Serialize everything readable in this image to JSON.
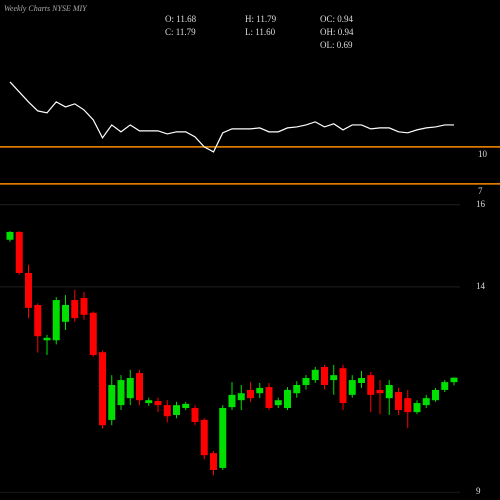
{
  "chart_data": [
    {
      "type": "line",
      "title": "Weekly Charts NYSE MIY",
      "summary": [
        "O: 11.68",
        "C: 11.79",
        "H: 11.79",
        "L: 11.60",
        "OC: 0.94",
        "OH: 0.94",
        "OL: 0.69"
      ],
      "values": [
        15.27,
        14.46,
        13.65,
        12.92,
        12.76,
        13.65,
        13.24,
        13.49,
        13.0,
        12.19,
        10.73,
        11.78,
        11.22,
        11.78,
        11.3,
        11.3,
        11.3,
        11.05,
        11.22,
        11.22,
        10.81,
        10.0,
        9.59,
        11.14,
        11.46,
        11.46,
        11.46,
        11.54,
        11.22,
        11.22,
        11.54,
        11.62,
        11.78,
        12.03,
        11.62,
        11.87,
        11.38,
        11.78,
        11.78,
        11.46,
        11.54,
        11.54,
        11.22,
        11.14,
        11.38,
        11.54,
        11.62,
        11.78,
        11.78
      ],
      "color": "#ffffff",
      "ylim": [
        6.5,
        17.05
      ],
      "yticks": [
        10,
        7
      ],
      "level_color": "#ff8c00"
    },
    {
      "type": "candlestick",
      "open": [
        15.15,
        15.34,
        14.34,
        13.56,
        12.7,
        12.7,
        13.15,
        13.68,
        13.73,
        13.37,
        12.41,
        10.76,
        11.12,
        11.29,
        11.9,
        11.17,
        11.22,
        11.12,
        10.88,
        11.05,
        11.05,
        10.76,
        9.95,
        9.59,
        11.07,
        11.24,
        11.49,
        11.41,
        11.56,
        11.12,
        11.05,
        11.41,
        11.61,
        11.73,
        12.05,
        11.73,
        12.02,
        11.37,
        11.66,
        11.85,
        11.49,
        11.29,
        11.44,
        11.29,
        10.95,
        11.12,
        11.24,
        11.49,
        11.68
      ],
      "high": [
        15.36,
        15.36,
        14.54,
        13.6,
        12.83,
        13.75,
        13.8,
        13.93,
        13.88,
        13.4,
        12.45,
        11.85,
        11.85,
        11.98,
        11.98,
        11.3,
        11.3,
        11.24,
        11.2,
        11.2,
        11.12,
        10.8,
        10.0,
        11.12,
        11.68,
        11.61,
        11.68,
        11.66,
        11.66,
        11.3,
        11.56,
        11.7,
        11.85,
        12.05,
        12.1,
        12.1,
        12.1,
        11.85,
        11.95,
        11.93,
        11.73,
        11.73,
        11.54,
        11.49,
        11.24,
        11.37,
        11.54,
        11.73,
        11.79
      ],
      "low": [
        15.1,
        14.3,
        13.24,
        12.4,
        12.34,
        12.6,
        12.95,
        13.15,
        13.2,
        12.3,
        10.55,
        10.63,
        11.0,
        11.12,
        11.12,
        11.1,
        10.95,
        10.7,
        10.8,
        11.0,
        10.63,
        9.8,
        9.41,
        9.54,
        11.0,
        11.0,
        11.2,
        11.29,
        11.0,
        11.05,
        11.0,
        11.3,
        11.5,
        11.66,
        11.5,
        11.37,
        11.0,
        11.3,
        11.54,
        10.95,
        10.9,
        10.88,
        10.88,
        10.56,
        10.9,
        11.05,
        11.2,
        11.44,
        11.6
      ],
      "close": [
        15.34,
        14.34,
        13.49,
        12.8,
        12.76,
        13.68,
        13.56,
        13.24,
        13.32,
        12.34,
        10.63,
        11.61,
        11.73,
        11.78,
        11.24,
        11.24,
        11.12,
        10.85,
        11.12,
        11.15,
        10.71,
        9.9,
        9.54,
        11.05,
        11.37,
        11.41,
        11.29,
        11.54,
        11.05,
        11.24,
        11.49,
        11.61,
        11.78,
        11.98,
        11.61,
        11.85,
        11.17,
        11.73,
        11.78,
        11.37,
        11.41,
        11.61,
        11.0,
        10.95,
        11.17,
        11.29,
        11.49,
        11.68,
        11.79
      ],
      "ylim": [
        8.93,
        16.24
      ],
      "yticks": [
        16,
        14,
        9
      ],
      "grid": true,
      "up_color": "#00e000",
      "down_color": "#ff0000"
    }
  ]
}
